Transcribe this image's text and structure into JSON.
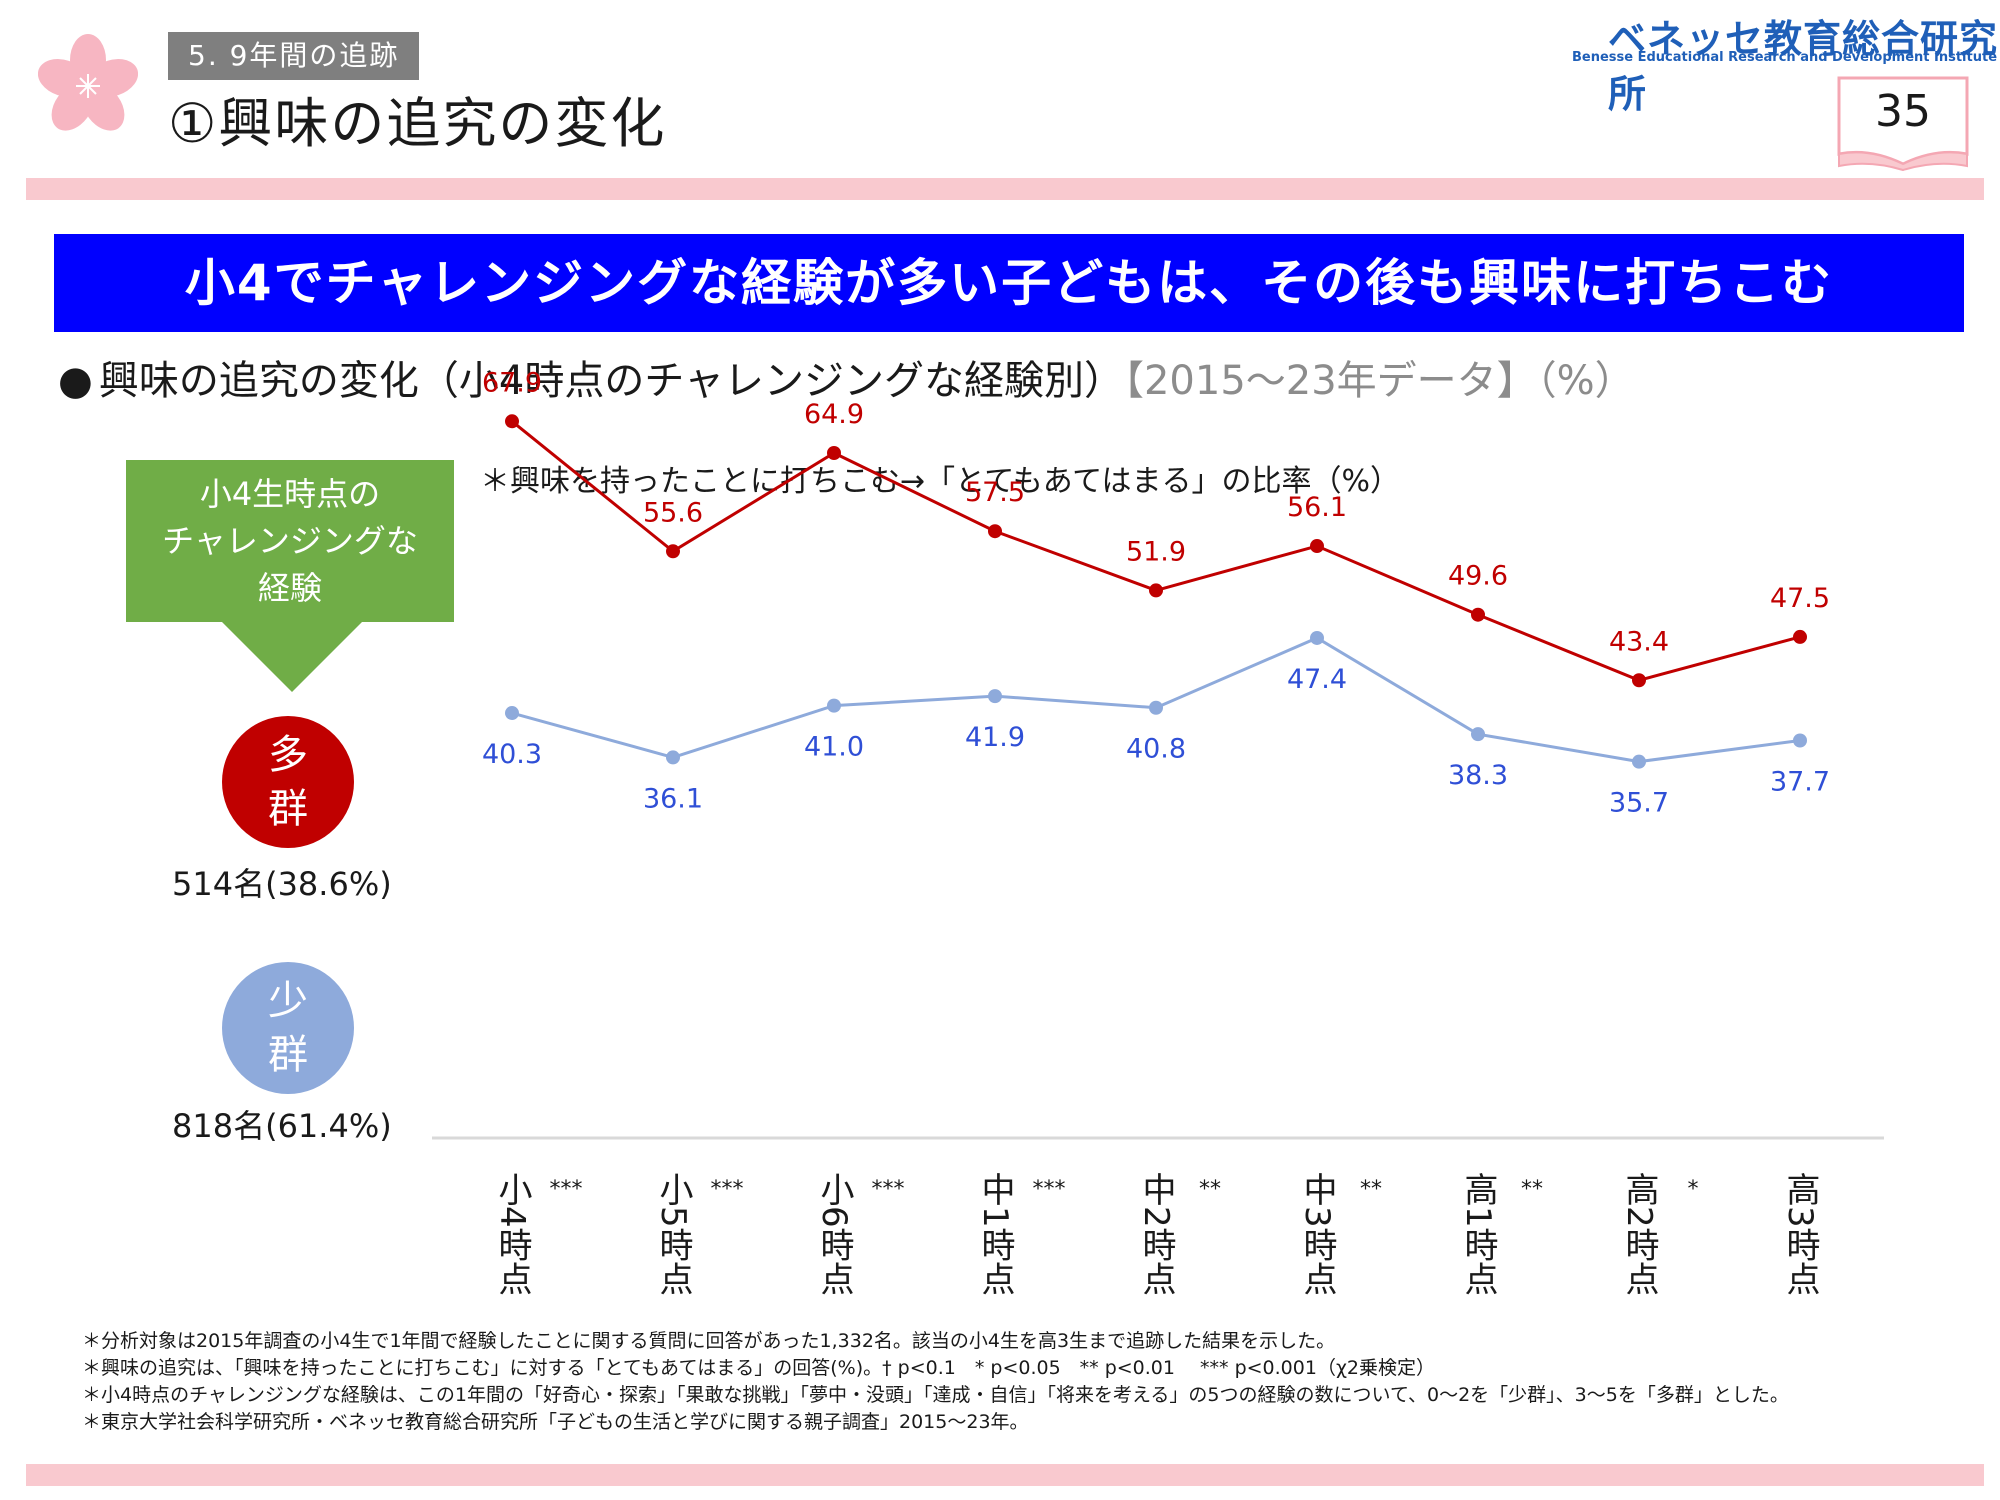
{
  "header": {
    "section_tag": "5. 9年間の追跡",
    "title": "①興味の追究の変化",
    "logo_jp": "ベネッセ教育総合研究所",
    "logo_en": "Benesse Educational Research and Development Institute",
    "page_number": "35"
  },
  "headline": "小4でチャレンジングな経験が多い子どもは、その後も興味に打ちこむ",
  "sub_heading": {
    "bullet": "●",
    "text": "興味の追究の変化（小4時点のチャレンジングな経験別）",
    "data_tag": "【2015～23年データ】",
    "unit": "（%）"
  },
  "chart_note": "＊興味を持ったことに打ちこむ→「とてもあてはまる」の比率（%）",
  "legend_panel": {
    "box_lines": [
      "小4生時点の",
      "チャレンジングな",
      "経験"
    ],
    "high_group": {
      "label_lines": [
        "多",
        "群"
      ],
      "count": "514名(38.6%)"
    },
    "low_group": {
      "label_lines": [
        "少",
        "群"
      ],
      "count": "818名(61.4%)"
    }
  },
  "colors": {
    "high_series": "#c00000",
    "low_series": "#8eaadb",
    "high_label": "#c00000",
    "low_label": "#2f4fd6",
    "headline_bg": "#0000ff",
    "box_green": "#70ad47",
    "pink_rule": "#f9c9cf"
  },
  "chart_data": {
    "type": "line",
    "title": "",
    "xlabel": "",
    "ylabel": "",
    "categories": [
      "小4時点",
      "小5時点",
      "小6時点",
      "中1時点",
      "中2時点",
      "中3時点",
      "高1時点",
      "高2時点",
      "高3時点"
    ],
    "significance": [
      "***",
      "***",
      "***",
      "***",
      "**",
      "**",
      "**",
      "*",
      ""
    ],
    "ylim": [
      20,
      80
    ],
    "grid": false,
    "series": [
      {
        "name": "多群",
        "values": [
          67.9,
          55.6,
          64.9,
          57.5,
          51.9,
          56.1,
          49.6,
          43.4,
          47.5
        ],
        "labels": [
          "67.9",
          "55.6",
          "64.9",
          "57.5",
          "51.9",
          "56.1",
          "49.6",
          "43.4",
          "47.5"
        ]
      },
      {
        "name": "少群",
        "values": [
          40.3,
          36.1,
          41.0,
          41.9,
          40.8,
          47.4,
          38.3,
          35.7,
          37.7
        ],
        "labels": [
          "40.3",
          "36.1",
          "41.0",
          "41.9",
          "40.8",
          "47.4",
          "38.3",
          "35.7",
          "37.7"
        ]
      }
    ]
  },
  "footnotes": [
    "＊分析対象は2015年調査の小4生で1年間で経験したことに関する質問に回答があった1,332名。該当の小4生を高3生まで追跡した結果を示した。",
    "＊興味の追究は、「興味を持ったことに打ちこむ」に対する「とてもあてはまる」の回答(%)。† p<0.1　* p<0.05　** p<0.01　 *** p<0.001（χ2乗検定）",
    "＊小4時点のチャレンジングな経験は、この1年間の「好奇心・探索」「果敢な挑戦」「夢中・没頭」「達成・自信」「将来を考える」の5つの経験の数について、0～2を「少群」、3～5を「多群」とした。",
    "＊東京大学社会科学研究所・ベネッセ教育総合研究所「子どもの生活と学びに関する親子調査」2015～23年。"
  ]
}
